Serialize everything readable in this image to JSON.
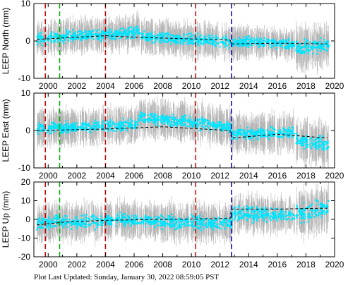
{
  "chart_data": [
    {
      "type": "scatter",
      "ylabel": "LEEP North (mm)",
      "xlim": [
        1999,
        2020
      ],
      "ylim": [
        -10,
        10
      ],
      "yticks": [
        -10,
        0,
        10
      ],
      "xticks": [
        2000,
        2002,
        2004,
        2006,
        2008,
        2010,
        2012,
        2014,
        2016,
        2018,
        2020
      ],
      "grid": false,
      "series": [
        {
          "color": "#00e5ff",
          "errorbar_color": "#b4b4b4",
          "segments": [
            {
              "x": [
                1999.2,
                2006.4
              ],
              "center": [
                0.5,
                2.5
              ],
              "spread": 2.2,
              "err": 3.5
            },
            {
              "x": [
                2006.5,
                2014.0
              ],
              "center": [
                1.0,
                -0.5
              ],
              "spread": 2.0,
              "err": 3.5
            },
            {
              "x": [
                2014.0,
                2017.2
              ],
              "center": [
                0.0,
                -1.0
              ],
              "spread": 1.8,
              "err": 3.0
            },
            {
              "x": [
                2017.3,
                2019.6
              ],
              "center": [
                -2.0,
                -1.0
              ],
              "spread": 3.0,
              "err": 4.5
            }
          ]
        },
        {
          "color": "#000000",
          "style": "dashed",
          "model": [
            {
              "x": 1999.2,
              "y": 0.4
            },
            {
              "x": 2002.0,
              "y": 1.0
            },
            {
              "x": 2004.0,
              "y": 1.4
            },
            {
              "x": 2006.0,
              "y": 1.0
            },
            {
              "x": 2010.2,
              "y": 0.5
            },
            {
              "x": 2012.7,
              "y": 0.2
            },
            {
              "x": 2012.8,
              "y": -0.8
            },
            {
              "x": 2016.0,
              "y": -0.6
            },
            {
              "x": 2019.5,
              "y": -0.8
            }
          ]
        }
      ],
      "vlines": [
        {
          "x": 1999.8,
          "color": "#cc0000"
        },
        {
          "x": 2000.8,
          "color": "#00b000"
        },
        {
          "x": 2004.0,
          "color": "#cc0000"
        },
        {
          "x": 2010.3,
          "color": "#cc0000"
        },
        {
          "x": 2012.8,
          "color": "#0000aa"
        }
      ]
    },
    {
      "type": "scatter",
      "ylabel": "LEEP East (mm)",
      "xlim": [
        1999,
        2020
      ],
      "ylim": [
        -10,
        10
      ],
      "yticks": [
        -10,
        0,
        10
      ],
      "xticks": [
        2000,
        2002,
        2004,
        2006,
        2008,
        2010,
        2012,
        2014,
        2016,
        2018,
        2020
      ],
      "grid": false,
      "series": [
        {
          "color": "#00e5ff",
          "errorbar_color": "#b4b4b4",
          "segments": [
            {
              "x": [
                1999.2,
                2006.3
              ],
              "center": [
                0.5,
                1.5
              ],
              "spread": 2.0,
              "err": 3.8
            },
            {
              "x": [
                2006.3,
                2012.8
              ],
              "center": [
                3.5,
                1.0
              ],
              "spread": 2.2,
              "err": 4.0
            },
            {
              "x": [
                2012.8,
                2017.2
              ],
              "center": [
                -1.0,
                -0.5
              ],
              "spread": 2.2,
              "err": 4.0
            },
            {
              "x": [
                2017.3,
                2019.6
              ],
              "center": [
                -2.5,
                -4.0
              ],
              "spread": 2.5,
              "err": 4.5
            }
          ]
        },
        {
          "color": "#000000",
          "style": "dashed",
          "model": [
            {
              "x": 1999.2,
              "y": 0.0
            },
            {
              "x": 2004.0,
              "y": 0.4
            },
            {
              "x": 2008.0,
              "y": 1.0
            },
            {
              "x": 2012.7,
              "y": 0.0
            },
            {
              "x": 2012.8,
              "y": -2.0
            },
            {
              "x": 2016.0,
              "y": -1.0
            },
            {
              "x": 2019.5,
              "y": -2.0
            }
          ]
        }
      ],
      "vlines": [
        {
          "x": 1999.8,
          "color": "#cc0000"
        },
        {
          "x": 2000.8,
          "color": "#00b000"
        },
        {
          "x": 2004.0,
          "color": "#cc0000"
        },
        {
          "x": 2010.3,
          "color": "#cc0000"
        },
        {
          "x": 2012.8,
          "color": "#0000aa"
        }
      ]
    },
    {
      "type": "scatter",
      "ylabel": "LEEP Up (mm)",
      "xlim": [
        1999,
        2020
      ],
      "ylim": [
        -20,
        20
      ],
      "yticks": [
        -20,
        -10,
        0,
        10,
        20
      ],
      "xticks": [
        2000,
        2002,
        2004,
        2006,
        2008,
        2010,
        2012,
        2014,
        2016,
        2018,
        2020
      ],
      "grid": false,
      "series": [
        {
          "color": "#00e5ff",
          "errorbar_color": "#b4b4b4",
          "segments": [
            {
              "x": [
                1999.2,
                2006.3
              ],
              "center": [
                -2.0,
                0.0
              ],
              "spread": 5.0,
              "err": 7.5
            },
            {
              "x": [
                2006.3,
                2012.8
              ],
              "center": [
                -1.0,
                -2.0
              ],
              "spread": 5.0,
              "err": 7.5
            },
            {
              "x": [
                2012.8,
                2017.2
              ],
              "center": [
                3.0,
                2.0
              ],
              "spread": 5.5,
              "err": 7.5
            },
            {
              "x": [
                2017.3,
                2019.6
              ],
              "center": [
                3.0,
                6.0
              ],
              "spread": 7.0,
              "err": 9.0
            }
          ]
        },
        {
          "color": "#000000",
          "style": "dashed",
          "model": [
            {
              "x": 1999.2,
              "y": -3.0
            },
            {
              "x": 2001.0,
              "y": -1.5
            },
            {
              "x": 2004.0,
              "y": -0.5
            },
            {
              "x": 2008.0,
              "y": 0.0
            },
            {
              "x": 2012.7,
              "y": 0.5
            },
            {
              "x": 2012.8,
              "y": 5.5
            },
            {
              "x": 2016.0,
              "y": 5.5
            },
            {
              "x": 2019.5,
              "y": 6.0
            }
          ]
        }
      ],
      "vlines": [
        {
          "x": 1999.8,
          "color": "#cc0000"
        },
        {
          "x": 2000.8,
          "color": "#00b000"
        },
        {
          "x": 2004.0,
          "color": "#cc0000"
        },
        {
          "x": 2010.3,
          "color": "#cc0000"
        },
        {
          "x": 2012.8,
          "color": "#0000aa"
        }
      ]
    }
  ],
  "footer": {
    "text": "Plot Last Updated:   Sunday, January 30, 2022 08:59:05 PST"
  }
}
